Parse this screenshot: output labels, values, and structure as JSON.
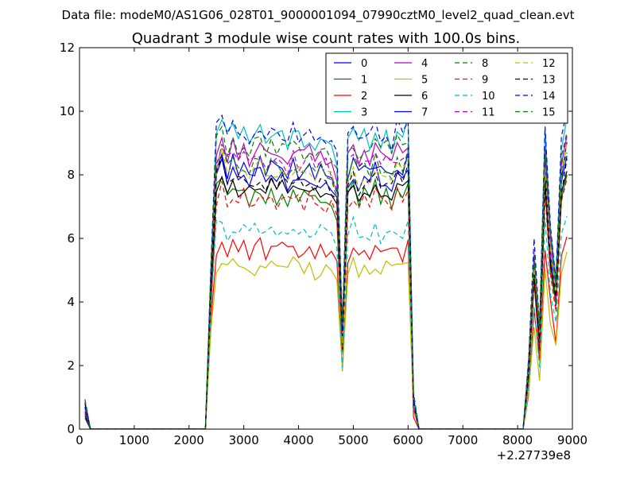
{
  "header": {
    "super_title": "Data file: modeM0/AS1G06_028T01_9000001094_07990cztM0_level2_quad_clean.evt"
  },
  "chart_data": {
    "type": "line",
    "title": "Quadrant 3 module wise count rates with 100.0s bins.",
    "xlabel": "",
    "ylabel": "",
    "x_offset_label": "+2.27739e8",
    "xlim": [
      0,
      9000
    ],
    "ylim": [
      0,
      12
    ],
    "x_ticks": [
      0,
      1000,
      2000,
      3000,
      4000,
      5000,
      6000,
      7000,
      8000,
      9000
    ],
    "y_ticks": [
      0,
      2,
      4,
      6,
      8,
      10,
      12
    ],
    "grid": false,
    "legend_position": "top-right",
    "x": [
      100,
      200,
      300,
      400,
      500,
      600,
      700,
      800,
      900,
      1000,
      1100,
      1200,
      1300,
      1400,
      1500,
      1600,
      1700,
      1800,
      1900,
      2000,
      2100,
      2200,
      2300,
      2400,
      2500,
      2600,
      2700,
      2800,
      2900,
      3000,
      3100,
      3200,
      3300,
      3400,
      3500,
      3600,
      3700,
      3800,
      3900,
      4000,
      4100,
      4200,
      4300,
      4400,
      4500,
      4600,
      4700,
      4800,
      4900,
      5000,
      5100,
      5200,
      5300,
      5400,
      5500,
      5600,
      5700,
      5800,
      5900,
      6000,
      6100,
      6200,
      6300,
      6400,
      6500,
      6600,
      6700,
      6800,
      6900,
      7000,
      7100,
      7200,
      7300,
      7400,
      7500,
      7600,
      7700,
      7800,
      7900,
      8000,
      8100,
      8200,
      8300,
      8400,
      8500,
      8600,
      8700,
      8800,
      8900
    ],
    "envelope": {
      "x": [
        100,
        200,
        300,
        2300,
        2400,
        2500,
        2600,
        2700,
        2800,
        2900,
        3000,
        3100,
        3200,
        3300,
        3400,
        3500,
        3600,
        3700,
        3800,
        3900,
        4000,
        4100,
        4200,
        4300,
        4400,
        4500,
        4600,
        4700,
        4800,
        4900,
        5000,
        5100,
        5200,
        5300,
        5400,
        5500,
        5600,
        5700,
        5800,
        5900,
        6000,
        6100,
        6200,
        6300,
        8100,
        8200,
        8300,
        8400,
        8500,
        8600,
        8700,
        8800,
        8900
      ],
      "f": [
        0.07,
        0.0,
        0.0,
        0.0,
        0.5,
        0.89,
        0.94,
        0.87,
        0.91,
        0.87,
        0.89,
        0.86,
        0.88,
        0.9,
        0.86,
        0.89,
        0.87,
        0.88,
        0.86,
        0.89,
        0.87,
        0.86,
        0.88,
        0.85,
        0.87,
        0.86,
        0.85,
        0.8,
        0.3,
        0.86,
        0.9,
        0.85,
        0.88,
        0.86,
        0.91,
        0.86,
        0.88,
        0.85,
        0.9,
        0.86,
        0.92,
        0.1,
        0.0,
        0.0,
        0.0,
        0.2,
        0.55,
        0.3,
        0.9,
        0.6,
        0.45,
        0.85,
        0.95
      ]
    },
    "series": [
      {
        "name": "0",
        "color": "#0000ff",
        "dash": false,
        "base": 9.0
      },
      {
        "name": "1",
        "color": "#008000",
        "dash": false,
        "base": 8.4
      },
      {
        "name": "2",
        "color": "#ff0000",
        "dash": false,
        "base": 6.4
      },
      {
        "name": "3",
        "color": "#00bfbf",
        "dash": false,
        "base": 10.5
      },
      {
        "name": "4",
        "color": "#bf00bf",
        "dash": false,
        "base": 9.9
      },
      {
        "name": "5",
        "color": "#bfbf00",
        "dash": false,
        "base": 5.8
      },
      {
        "name": "6",
        "color": "#000000",
        "dash": false,
        "base": 8.6
      },
      {
        "name": "7",
        "color": "#0000ff",
        "dash": false,
        "base": 9.3
      },
      {
        "name": "8",
        "color": "#008000",
        "dash": true,
        "base": 9.4
      },
      {
        "name": "9",
        "color": "#ff0000",
        "dash": true,
        "base": 8.2
      },
      {
        "name": "10",
        "color": "#00bfbf",
        "dash": true,
        "base": 7.1
      },
      {
        "name": "11",
        "color": "#bf00bf",
        "dash": true,
        "base": 9.6
      },
      {
        "name": "12",
        "color": "#bfbf00",
        "dash": true,
        "base": 9.2
      },
      {
        "name": "13",
        "color": "#000000",
        "dash": true,
        "base": 8.9
      },
      {
        "name": "14",
        "color": "#0000ff",
        "dash": true,
        "base": 10.6
      },
      {
        "name": "15",
        "color": "#008000",
        "dash": true,
        "base": 10.1
      }
    ]
  }
}
